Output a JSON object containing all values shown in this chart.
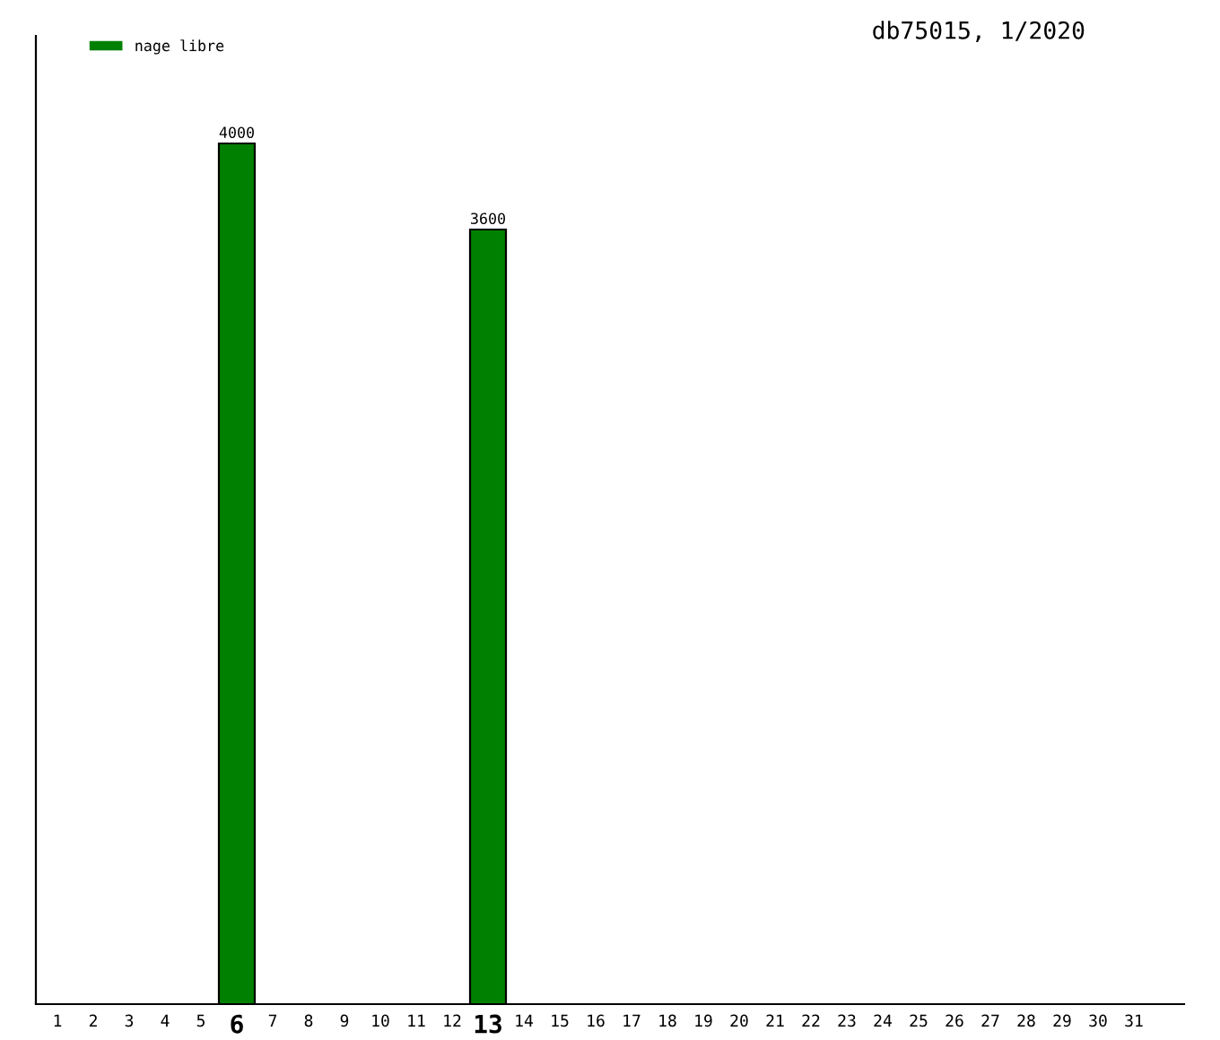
{
  "chart_data": {
    "type": "bar",
    "title": "db75015, 1/2020",
    "categories": [
      "1",
      "2",
      "3",
      "4",
      "5",
      "6",
      "7",
      "8",
      "9",
      "10",
      "11",
      "12",
      "13",
      "14",
      "15",
      "16",
      "17",
      "18",
      "19",
      "20",
      "21",
      "22",
      "23",
      "24",
      "25",
      "26",
      "27",
      "28",
      "29",
      "30",
      "31"
    ],
    "series": [
      {
        "name": "nage libre",
        "color": "#008000",
        "values": [
          null,
          null,
          null,
          null,
          null,
          4000,
          null,
          null,
          null,
          null,
          null,
          null,
          3600,
          null,
          null,
          null,
          null,
          null,
          null,
          null,
          null,
          null,
          null,
          null,
          null,
          null,
          null,
          null,
          null,
          null,
          null
        ]
      }
    ],
    "ylim": [
      0,
      4500
    ],
    "tick_labels": "x",
    "data_labels": true,
    "legend": "top left",
    "grid": false
  }
}
